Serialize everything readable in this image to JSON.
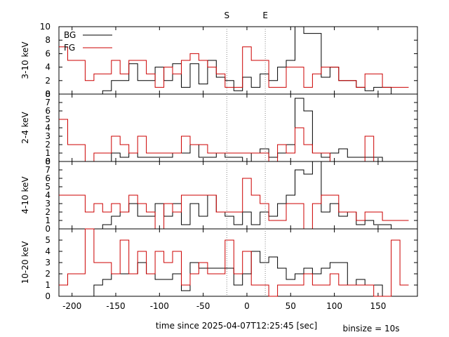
{
  "figure": {
    "xlabel": "time since 2025-04-07T12:25:45 [sec]",
    "binsize_label": "binsize = 10s",
    "markers": [
      {
        "label": "S",
        "x": -23
      },
      {
        "label": "E",
        "x": 21
      }
    ],
    "legend": [
      {
        "name": "BG",
        "color": "#000000"
      },
      {
        "name": "FG",
        "color": "#cc0000"
      }
    ]
  },
  "chart_data": [
    {
      "type": "line",
      "ylabel": "3-10 keV",
      "x": [
        -210,
        -200,
        -190,
        -180,
        -170,
        -160,
        -150,
        -140,
        -130,
        -120,
        -110,
        -100,
        -90,
        -80,
        -70,
        -60,
        -50,
        -40,
        -30,
        -20,
        -10,
        0,
        10,
        20,
        30,
        40,
        50,
        60,
        70,
        80,
        90,
        100,
        110,
        120,
        130,
        140,
        150,
        160,
        170,
        180
      ],
      "xlim": [
        -215,
        195
      ],
      "ylim": [
        0,
        10
      ],
      "xticks": [
        -200,
        -150,
        -100,
        -50,
        0,
        50,
        100,
        150
      ],
      "yticks": [
        0,
        2,
        4,
        6,
        8,
        10
      ],
      "series": [
        {
          "name": "BG",
          "color": "#000000",
          "values": [
            0,
            0,
            0,
            0,
            0,
            0.5,
            2,
            2,
            4.5,
            2,
            2,
            4,
            2,
            4.5,
            1,
            4.5,
            1.5,
            5,
            2.5,
            2,
            0.5,
            2.5,
            1,
            3,
            2,
            4,
            5,
            10,
            9,
            9,
            2.5,
            4,
            2,
            2,
            1,
            0.5,
            1,
            1,
            0,
            0
          ]
        },
        {
          "name": "FG",
          "color": "#cc0000",
          "values": [
            7,
            5,
            5,
            2,
            3,
            3,
            5,
            3,
            5,
            5,
            3,
            1,
            4,
            3,
            5,
            6,
            5,
            4,
            3,
            1,
            1,
            7,
            5,
            5,
            1,
            1,
            4,
            4,
            1,
            3,
            4,
            4,
            2,
            2,
            1,
            3,
            3,
            1,
            1,
            1
          ]
        }
      ]
    },
    {
      "type": "line",
      "ylabel": "2-4 keV",
      "x": [
        -210,
        -200,
        -190,
        -180,
        -170,
        -160,
        -150,
        -140,
        -130,
        -120,
        -110,
        -100,
        -90,
        -80,
        -70,
        -60,
        -50,
        -40,
        -30,
        -20,
        -10,
        0,
        10,
        20,
        30,
        40,
        50,
        60,
        70,
        80,
        90,
        100,
        110,
        120,
        130,
        140,
        150,
        160,
        170,
        180
      ],
      "xlim": [
        -215,
        195
      ],
      "ylim": [
        0,
        8
      ],
      "xticks": [
        -200,
        -150,
        -100,
        -50,
        0,
        50,
        100,
        150
      ],
      "yticks": [
        0,
        1,
        2,
        3,
        4,
        5,
        6,
        7,
        8
      ],
      "series": [
        {
          "name": "BG",
          "color": "#000000",
          "values": [
            0,
            0,
            0,
            0,
            0,
            0,
            1,
            0.5,
            1,
            0.5,
            0.5,
            0.5,
            0.5,
            1,
            1,
            2,
            0.5,
            0.5,
            1,
            0.5,
            0.5,
            0,
            1,
            1.5,
            0.5,
            1,
            2,
            7.5,
            6,
            1,
            0.5,
            1,
            1.5,
            0.5,
            0.5,
            0.5,
            0.5,
            0,
            0,
            0
          ]
        },
        {
          "name": "FG",
          "color": "#cc0000",
          "values": [
            5,
            2,
            2,
            0,
            1,
            1,
            3,
            2,
            1,
            3,
            1,
            1,
            1,
            1,
            3,
            2,
            2,
            1,
            1,
            1,
            1,
            1,
            1,
            1,
            0,
            2,
            1,
            4,
            2,
            1,
            1,
            0,
            0,
            0,
            0,
            3,
            0,
            0,
            0,
            0
          ]
        }
      ]
    },
    {
      "type": "line",
      "ylabel": "4-10 keV",
      "x": [
        -210,
        -200,
        -190,
        -180,
        -170,
        -160,
        -150,
        -140,
        -130,
        -120,
        -110,
        -100,
        -90,
        -80,
        -70,
        -60,
        -50,
        -40,
        -30,
        -20,
        -10,
        0,
        10,
        20,
        30,
        40,
        50,
        60,
        70,
        80,
        90,
        100,
        110,
        120,
        130,
        140,
        150,
        160,
        170,
        180
      ],
      "xlim": [
        -215,
        195
      ],
      "ylim": [
        0,
        8
      ],
      "xticks": [
        -200,
        -150,
        -100,
        -50,
        0,
        50,
        100,
        150
      ],
      "yticks": [
        0,
        1,
        2,
        3,
        4,
        5,
        6,
        7,
        8
      ],
      "series": [
        {
          "name": "BG",
          "color": "#000000",
          "values": [
            0,
            0,
            0,
            0,
            0,
            0.5,
            1.5,
            2,
            3,
            1.5,
            1.5,
            3,
            1.5,
            3,
            0.5,
            3,
            1.5,
            4,
            2,
            1.5,
            0.5,
            2,
            0.5,
            2,
            1.5,
            3,
            4,
            7,
            6.5,
            8,
            2,
            3,
            1.5,
            2,
            0.5,
            1,
            0.5,
            0.5,
            0,
            0
          ]
        },
        {
          "name": "FG",
          "color": "#cc0000",
          "values": [
            4,
            4,
            4,
            2,
            3,
            2,
            3,
            2,
            4,
            3,
            2,
            0,
            3,
            2,
            4,
            4,
            4,
            4,
            2,
            2,
            2,
            6,
            4,
            3,
            1,
            1,
            3,
            3,
            0,
            3,
            4,
            4,
            2,
            2,
            1,
            2,
            2,
            1,
            1,
            1
          ]
        }
      ]
    },
    {
      "type": "line",
      "ylabel": "10-20 keV",
      "x": [
        -210,
        -200,
        -190,
        -180,
        -170,
        -160,
        -150,
        -140,
        -130,
        -120,
        -110,
        -100,
        -90,
        -80,
        -70,
        -60,
        -50,
        -40,
        -30,
        -20,
        -10,
        0,
        10,
        20,
        30,
        40,
        50,
        60,
        70,
        80,
        90,
        100,
        110,
        120,
        130,
        140,
        150,
        160,
        170,
        180
      ],
      "xlim": [
        -215,
        195
      ],
      "ylim": [
        0,
        6
      ],
      "xticks": [
        -200,
        -150,
        -100,
        -50,
        0,
        50,
        100,
        150
      ],
      "yticks": [
        0,
        1,
        2,
        3,
        4,
        5
      ],
      "series": [
        {
          "name": "BG",
          "color": "#000000",
          "values": [
            0,
            0,
            0,
            0,
            1,
            1.5,
            2,
            2,
            2,
            3,
            2,
            1.5,
            1.5,
            2,
            0.5,
            3,
            2.5,
            2.5,
            2.5,
            2.5,
            1,
            2,
            4,
            3,
            3.5,
            2.5,
            1.5,
            2,
            2.5,
            2,
            2.5,
            3,
            3,
            1,
            1.5,
            1,
            1,
            0,
            0,
            0
          ]
        },
        {
          "name": "FG",
          "color": "#cc0000",
          "values": [
            1,
            2,
            2,
            6,
            3,
            3,
            2,
            5,
            2,
            4,
            2,
            4,
            3,
            4,
            1,
            2,
            3,
            2,
            2,
            5,
            2,
            4,
            1,
            1,
            0,
            1,
            1,
            1,
            2,
            1,
            1,
            2,
            1,
            1,
            1,
            1,
            0,
            0,
            5,
            1
          ]
        }
      ]
    }
  ]
}
